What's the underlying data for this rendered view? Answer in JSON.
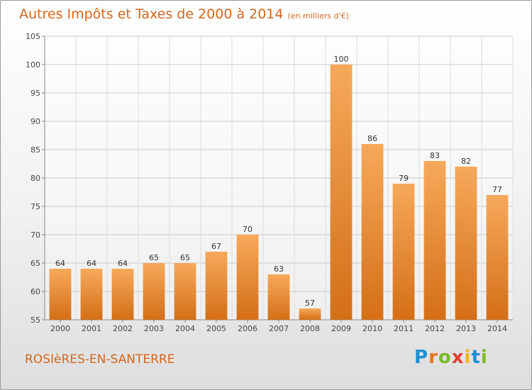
{
  "title": "Autres Impôts et Taxes de 2000 à 2014",
  "unit": "(en milliers d'€)",
  "commune": "ROSIèRES-EN-SANTERRE",
  "logo": {
    "letters": [
      "P",
      "r",
      "o",
      "x",
      "i",
      "t",
      "i"
    ]
  },
  "colors": {
    "bar_top": "#f6a95a",
    "bar_bottom": "#d46f17",
    "accent": "#d4671c"
  },
  "chart_data": {
    "type": "bar",
    "categories": [
      "2000",
      "2001",
      "2002",
      "2003",
      "2004",
      "2005",
      "2006",
      "2007",
      "2008",
      "2009",
      "2010",
      "2011",
      "2012",
      "2013",
      "2014"
    ],
    "values": [
      64,
      64,
      64,
      65,
      65,
      67,
      70,
      63,
      57,
      100,
      86,
      79,
      83,
      82,
      77
    ],
    "ylim": [
      55,
      105
    ],
    "yticks": [
      55,
      60,
      65,
      70,
      75,
      80,
      85,
      90,
      95,
      100,
      105
    ],
    "grid": true,
    "title": "Autres Impôts et Taxes de 2000 à 2014",
    "xlabel": "",
    "ylabel": ""
  }
}
